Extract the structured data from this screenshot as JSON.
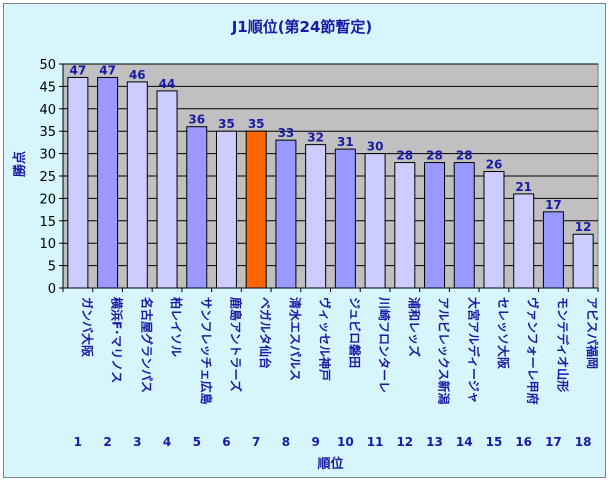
{
  "chart_data": {
    "type": "bar",
    "title": "J1順位(第24節暫定)",
    "xlabel": "順位",
    "ylabel": "勝点",
    "ylim": [
      0,
      50
    ],
    "yticks": [
      0,
      5,
      10,
      15,
      20,
      25,
      30,
      35,
      40,
      45,
      50
    ],
    "grid": true,
    "legend": "none",
    "categories": [
      "1",
      "2",
      "3",
      "4",
      "5",
      "6",
      "7",
      "8",
      "9",
      "10",
      "11",
      "12",
      "13",
      "14",
      "15",
      "16",
      "17",
      "18"
    ],
    "teams": [
      "ガンバ大阪",
      "横浜F･マリノス",
      "名古屋グランパス",
      "柏レイソル",
      "サンフレッチェ広島",
      "鹿島アントラーズ",
      "ベガルタ仙台",
      "清水エスパルス",
      "ヴィッセル神戸",
      "ジュビロ磐田",
      "川崎フロンターレ",
      "浦和レッズ",
      "アルビレックス新潟",
      "大宮アルディージャ",
      "セレッソ大阪",
      "ヴァンフォーレ甲府",
      "モンテディオ山形",
      "アビスパ福岡"
    ],
    "values": [
      47,
      47,
      46,
      44,
      36,
      35,
      35,
      33,
      32,
      31,
      30,
      28,
      28,
      28,
      26,
      21,
      17,
      12
    ],
    "bar_colors": [
      "#ccccff",
      "#9999ff",
      "#ccccff",
      "#ccccff",
      "#9999ff",
      "#ccccff",
      "#ff6600",
      "#9999ff",
      "#ccccff",
      "#9999ff",
      "#ccccff",
      "#ccccff",
      "#9999ff",
      "#9999ff",
      "#ccccff",
      "#ccccff",
      "#9999ff",
      "#ccccff"
    ],
    "colors": {
      "plot_area": "#c0c0c0",
      "background": "#d7f5fd",
      "label_text": "#1a1aa6"
    }
  }
}
